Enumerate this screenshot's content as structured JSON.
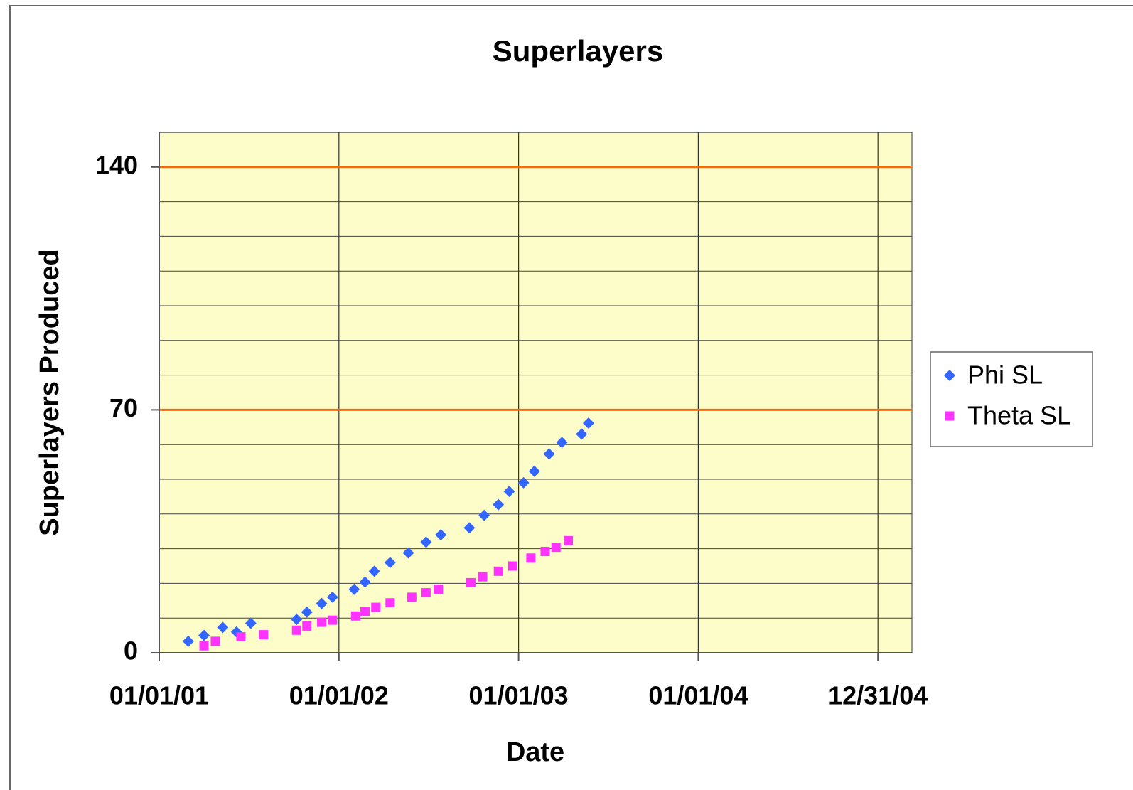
{
  "chart_data": {
    "type": "scatter",
    "title": "Superlayers",
    "x_label": "Date",
    "y_label": "Superlayers Produced",
    "xlim": [
      "2001-01-01",
      "2005-03-10"
    ],
    "xticks": [
      {
        "value": "2001-01-01",
        "label": "01/01/01"
      },
      {
        "value": "2002-01-01",
        "label": "01/01/02"
      },
      {
        "value": "2003-01-01",
        "label": "01/01/03"
      },
      {
        "value": "2004-01-01",
        "label": "01/01/04"
      },
      {
        "value": "2004-12-31",
        "label": "12/31/04"
      }
    ],
    "ylim": [
      0,
      150
    ],
    "yticks": [
      0,
      70,
      140
    ],
    "ygrid": [
      10,
      20,
      30,
      40,
      50,
      60,
      70,
      80,
      90,
      100,
      110,
      120,
      130,
      140,
      150
    ],
    "highlight_lines": [
      70,
      140
    ],
    "highlight_color": "#ff6a00",
    "grid": true,
    "plot_background": "#fdfdc9",
    "legend": "right",
    "series": [
      {
        "name": "Phi SL",
        "color": "#3366ff",
        "marker": "diamond",
        "x": [
          "2001-03-01",
          "2001-04-02",
          "2001-05-10",
          "2001-06-07",
          "2001-07-06",
          "2001-10-07",
          "2001-10-28",
          "2001-11-27",
          "2001-12-19",
          "2002-02-01",
          "2002-02-23",
          "2002-03-14",
          "2002-04-15",
          "2002-05-22",
          "2002-06-27",
          "2002-07-27",
          "2002-09-23",
          "2002-10-23",
          "2002-11-21",
          "2002-12-13",
          "2003-01-11",
          "2003-02-02",
          "2003-03-04",
          "2003-03-30",
          "2003-05-09",
          "2003-05-23"
        ],
        "values": [
          3.3,
          5,
          7.3,
          6,
          8.5,
          9.6,
          11.7,
          14.2,
          16,
          18.3,
          20.4,
          23.5,
          26,
          28.8,
          31.9,
          34,
          36,
          39.6,
          42.7,
          46.5,
          49,
          52.3,
          57.3,
          60.6,
          63,
          66.2
        ]
      },
      {
        "name": "Theta SL",
        "color": "#ff33ff",
        "marker": "square",
        "x": [
          "2001-04-02",
          "2001-04-25",
          "2001-06-16",
          "2001-08-01",
          "2001-10-07",
          "2001-10-28",
          "2001-11-27",
          "2001-12-19",
          "2002-02-04",
          "2002-02-23",
          "2002-03-17",
          "2002-04-15",
          "2002-05-29",
          "2002-06-27",
          "2002-07-22",
          "2002-09-26",
          "2002-10-20",
          "2002-11-21",
          "2002-12-20",
          "2003-01-26",
          "2003-02-24",
          "2003-03-18",
          "2003-04-12"
        ],
        "values": [
          2,
          3.3,
          4.6,
          5.2,
          6.5,
          7.7,
          8.8,
          9.4,
          10.6,
          11.9,
          13.1,
          14.4,
          16,
          17.3,
          18.3,
          20.2,
          21.9,
          23.5,
          25,
          27.3,
          29.2,
          30.4,
          32.3
        ]
      }
    ]
  }
}
